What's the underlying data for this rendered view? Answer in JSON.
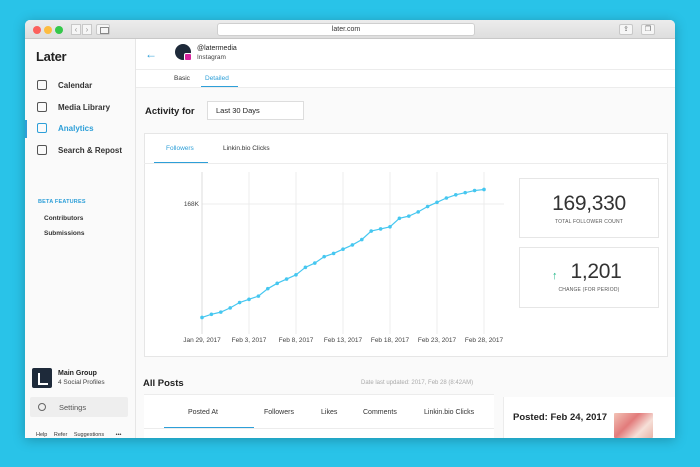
{
  "browser": {
    "url": "later.com"
  },
  "sidebar": {
    "logo": "Later",
    "items": [
      {
        "label": "Calendar",
        "icon": "calendar-icon"
      },
      {
        "label": "Media Library",
        "icon": "media-library-icon"
      },
      {
        "label": "Analytics",
        "icon": "analytics-icon",
        "active": true
      },
      {
        "label": "Search & Repost",
        "icon": "search-repost-icon"
      }
    ],
    "beta_heading": "BETA FEATURES",
    "beta_items": [
      "Contributors",
      "Submissions"
    ],
    "group": {
      "name": "Main Group",
      "subtitle": "4 Social Profiles"
    },
    "settings_label": "Settings",
    "footer": {
      "help": "Help",
      "refer": "Refer",
      "suggestions": "Suggestions",
      "more": "•••"
    }
  },
  "header": {
    "profile_name": "@latermedia",
    "profile_network": "Instagram",
    "tabs": [
      "Basic",
      "Detailed"
    ],
    "active_tab": "Detailed"
  },
  "activity": {
    "label": "Activity for",
    "range": "Last 30 Days"
  },
  "chart_tabs": [
    "Followers",
    "Linkin.bio Clicks"
  ],
  "stats": {
    "total_followers": "169,330",
    "total_followers_label": "TOTAL FOLLOWER COUNT",
    "change": "1,201",
    "change_label": "CHANGE (FOR PERIOD)"
  },
  "chart_data": {
    "type": "line",
    "x": [
      "Jan 29, 2017",
      "Jan 30",
      "Jan 31",
      "Feb 1",
      "Feb 2",
      "Feb 3, 2017",
      "Feb 4",
      "Feb 5",
      "Feb 6",
      "Feb 7",
      "Feb 8, 2017",
      "Feb 9",
      "Feb 10",
      "Feb 11",
      "Feb 12",
      "Feb 13, 2017",
      "Feb 14",
      "Feb 15",
      "Feb 16",
      "Feb 17",
      "Feb 18, 2017",
      "Feb 19",
      "Feb 20",
      "Feb 21",
      "Feb 22",
      "Feb 23, 2017",
      "Feb 24",
      "Feb 25",
      "Feb 26",
      "Feb 27",
      "Feb 28, 2017"
    ],
    "x_ticks": [
      "Jan 29, 2017",
      "Feb 3, 2017",
      "Feb 8, 2017",
      "Feb 13, 2017",
      "Feb 18, 2017",
      "Feb 23, 2017",
      "Feb 28, 2017"
    ],
    "series": [
      {
        "values": [
          168130,
          168160,
          168180,
          168220,
          168270,
          168300,
          168330,
          168400,
          168450,
          168490,
          168530,
          168600,
          168640,
          168700,
          168730,
          168770,
          168810,
          168860,
          168940,
          168960,
          168980,
          169060,
          169080,
          169120,
          169170,
          169210,
          169250,
          169280,
          169300,
          169320,
          169330
        ]
      }
    ],
    "y_ticks": [
      "168K",
      "168K"
    ],
    "ylim": [
      168050,
      169400
    ],
    "grid": true
  },
  "posts": {
    "title": "All Posts",
    "updated": "Date last updated: 2017, Feb 28 (8:42AM)",
    "columns": [
      "Posted At",
      "Followers",
      "Likes",
      "Comments",
      "Linkin.bio Clicks"
    ],
    "active_column": "Posted At",
    "posted_label": "Posted: Feb 24, 2017"
  },
  "colors": {
    "accent": "#2d9fd8",
    "background": "#29c3e8",
    "line": "#46c7f0",
    "positive": "#1fb787"
  }
}
